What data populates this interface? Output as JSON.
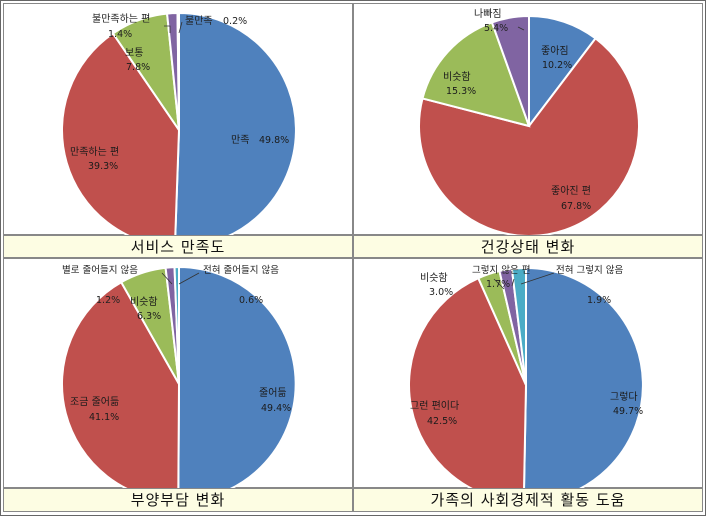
{
  "colors": {
    "blue": "#4f81bd",
    "red": "#c0504d",
    "green": "#9bbb59",
    "purple": "#8064a2",
    "teal": "#4bacc6",
    "caption_bg": "#fdfde3"
  },
  "chart_data": [
    {
      "type": "pie",
      "title": "서비스 만족도",
      "slices": [
        {
          "label": "만족",
          "pct_text": "49.8%",
          "value": 49.8,
          "color": "#4f81bd"
        },
        {
          "label": "만족하는 편",
          "pct_text": "39.3%",
          "value": 39.3,
          "color": "#c0504d"
        },
        {
          "label": "보통",
          "pct_text": "7.8%",
          "value": 7.8,
          "color": "#9bbb59"
        },
        {
          "label": "불만족하는 편",
          "pct_text": "1.4%",
          "value": 1.4,
          "color": "#8064a2"
        },
        {
          "label": "불만족",
          "pct_text": "0.2%",
          "value": 0.2,
          "color": "#4bacc6"
        }
      ]
    },
    {
      "type": "pie",
      "title": "건강상태 변화",
      "slices": [
        {
          "label": "좋아짐",
          "pct_text": "10.2%",
          "value": 10.2,
          "color": "#4f81bd"
        },
        {
          "label": "좋아진 편",
          "pct_text": "67.8%",
          "value": 67.8,
          "color": "#c0504d"
        },
        {
          "label": "비슷함",
          "pct_text": "15.3%",
          "value": 15.3,
          "color": "#9bbb59"
        },
        {
          "label": "나빠짐",
          "pct_text": "5.4%",
          "value": 5.4,
          "color": "#8064a2"
        }
      ]
    },
    {
      "type": "pie",
      "title": "부양부담 변화",
      "slices": [
        {
          "label": "줄어듦",
          "pct_text": "49.4%",
          "value": 49.4,
          "color": "#4f81bd"
        },
        {
          "label": "조금 줄어듦",
          "pct_text": "41.1%",
          "value": 41.1,
          "color": "#c0504d"
        },
        {
          "label": "비슷함",
          "pct_text": "6.3%",
          "value": 6.3,
          "color": "#9bbb59"
        },
        {
          "label": "별로 줄어들지 않음",
          "pct_text": "1.2%",
          "value": 1.2,
          "color": "#8064a2"
        },
        {
          "label": "전혀 줄어들지 않음",
          "pct_text": "0.6%",
          "value": 0.6,
          "color": "#4bacc6"
        }
      ]
    },
    {
      "type": "pie",
      "title": "가족의 사회경제적 활동 도움",
      "slices": [
        {
          "label": "그렇다",
          "pct_text": "49.7%",
          "value": 49.7,
          "color": "#4f81bd"
        },
        {
          "label": "그런 편이다",
          "pct_text": "42.5%",
          "value": 42.5,
          "color": "#c0504d"
        },
        {
          "label": "비슷함",
          "pct_text": "3.0%",
          "value": 3.0,
          "color": "#9bbb59"
        },
        {
          "label": "그렇지 않은 편",
          "pct_text": "1.7%",
          "value": 1.7,
          "color": "#8064a2"
        },
        {
          "label": "전혀 그렇지 않음",
          "pct_text": "1.9%",
          "value": 1.9,
          "color": "#4bacc6"
        }
      ]
    }
  ]
}
